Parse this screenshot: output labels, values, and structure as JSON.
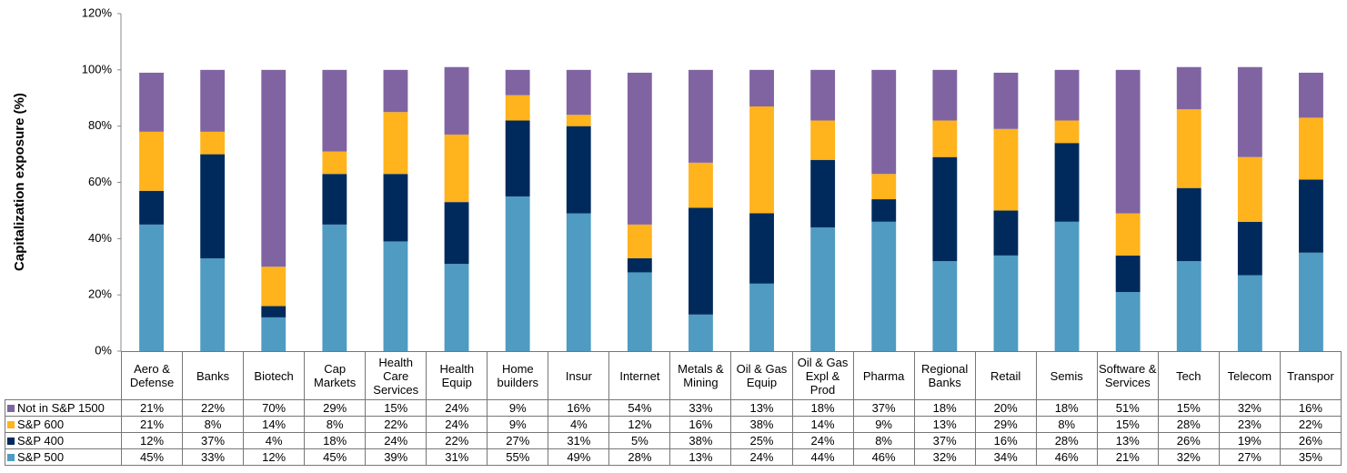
{
  "chart_data": {
    "type": "stacked_bar",
    "y_label": "Capitalization exposure (%)",
    "categories": [
      "Aero & Defense",
      "Banks",
      "Biotech",
      "Cap Markets",
      "Health Care Services",
      "Health Equip",
      "Home builders",
      "Insur",
      "Internet",
      "Metals & Mining",
      "Oil & Gas Equip",
      "Oil & Gas Expl & Prod",
      "Pharma",
      "Regional Banks",
      "Retail",
      "Semis",
      "Software & Services",
      "Tech",
      "Telecom",
      "Transpor"
    ],
    "series": [
      {
        "name": "S&P 500",
        "color": "#4f9bc1",
        "values": [
          45,
          33,
          12,
          45,
          39,
          31,
          55,
          49,
          28,
          13,
          24,
          44,
          46,
          32,
          34,
          46,
          21,
          32,
          27,
          35
        ],
        "value_labels": [
          "45%",
          "33%",
          "12%",
          "45%",
          "39%",
          "31%",
          "55%",
          "49%",
          "28%",
          "13%",
          "24%",
          "44%",
          "46%",
          "32%",
          "34%",
          "46%",
          "21%",
          "32%",
          "27%",
          "35%"
        ]
      },
      {
        "name": "S&P 400",
        "color": "#002a5c",
        "values": [
          12,
          37,
          4,
          18,
          24,
          22,
          27,
          31,
          5,
          38,
          25,
          24,
          8,
          37,
          16,
          28,
          13,
          26,
          19,
          26
        ],
        "value_labels": [
          "12%",
          "37%",
          "4%",
          "18%",
          "24%",
          "22%",
          "27%",
          "31%",
          "5%",
          "38%",
          "25%",
          "24%",
          "8%",
          "37%",
          "16%",
          "28%",
          "13%",
          "26%",
          "19%",
          "26%"
        ]
      },
      {
        "name": "S&P 600",
        "color": "#ffb31c",
        "values": [
          21,
          8,
          14,
          8,
          22,
          24,
          9,
          4,
          12,
          16,
          38,
          14,
          9,
          13,
          29,
          8,
          15,
          28,
          23,
          22
        ],
        "value_labels": [
          "21%",
          "8%",
          "14%",
          "8%",
          "22%",
          "24%",
          "9%",
          "4%",
          "12%",
          "16%",
          "38%",
          "14%",
          "9%",
          "13%",
          "29%",
          "8%",
          "15%",
          "28%",
          "23%",
          "22%"
        ]
      },
      {
        "name": "Not in S&P 1500",
        "color": "#8064a2",
        "values": [
          21,
          22,
          70,
          29,
          15,
          24,
          9,
          16,
          54,
          33,
          13,
          18,
          37,
          18,
          20,
          18,
          51,
          15,
          32,
          16
        ],
        "value_labels": [
          "21%",
          "22%",
          "70%",
          "29%",
          "15%",
          "24%",
          "9%",
          "16%",
          "54%",
          "33%",
          "13%",
          "18%",
          "37%",
          "18%",
          "20%",
          "18%",
          "51%",
          "15%",
          "32%",
          "16%"
        ]
      }
    ],
    "ylim": [
      0,
      120
    ],
    "yticks": [
      {
        "value": 0,
        "label": "0%"
      },
      {
        "value": 20,
        "label": "20%"
      },
      {
        "value": 40,
        "label": "40%"
      },
      {
        "value": 60,
        "label": "60%"
      },
      {
        "value": 80,
        "label": "80%"
      },
      {
        "value": 100,
        "label": "100%"
      },
      {
        "value": 120,
        "label": "120%"
      }
    ]
  }
}
